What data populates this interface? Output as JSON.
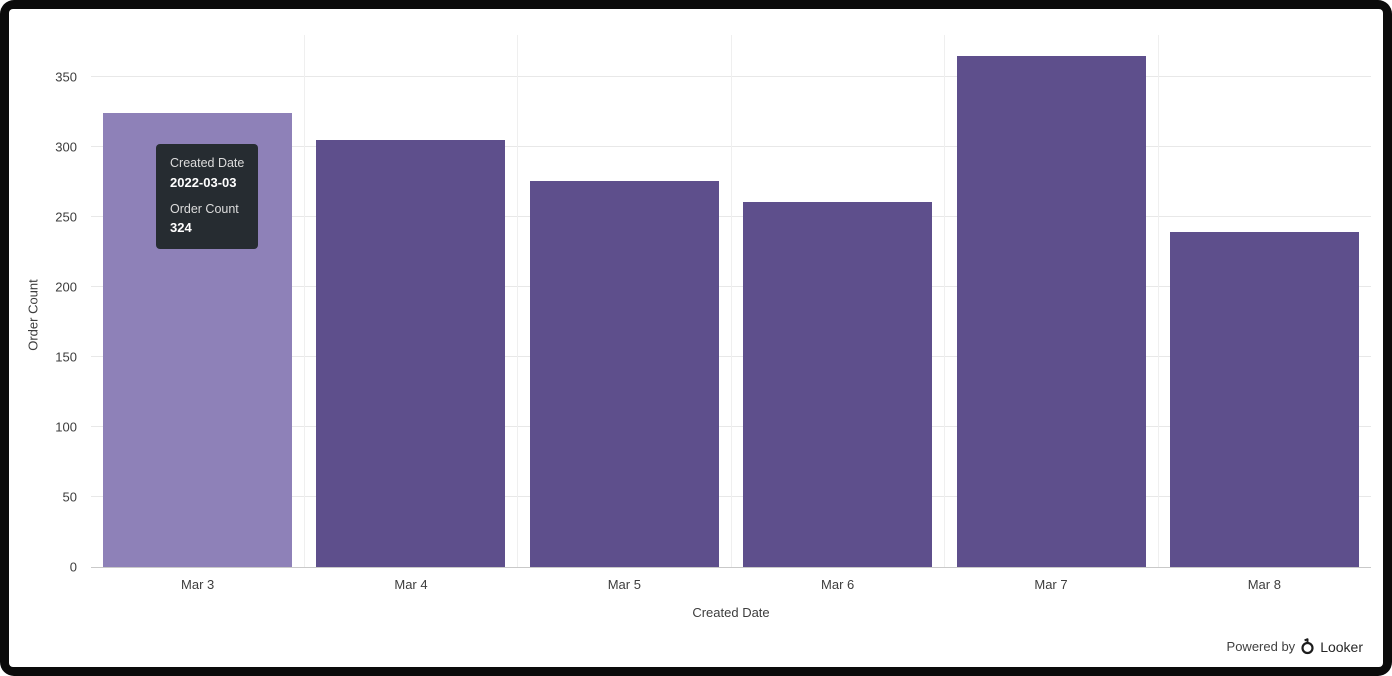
{
  "chart_data": {
    "type": "bar",
    "categories": [
      "Mar 3",
      "Mar 4",
      "Mar 5",
      "Mar 6",
      "Mar 7",
      "Mar 8"
    ],
    "values": [
      324,
      305,
      276,
      261,
      365,
      239
    ],
    "series_name": "Order Count",
    "title": "",
    "xlabel": "Created Date",
    "ylabel": "Order Count",
    "ylim": [
      0,
      380
    ],
    "yticks": [
      0,
      50,
      100,
      150,
      200,
      250,
      300,
      350
    ],
    "grid": "horizontal",
    "legend": "none",
    "bar_color": "#5E4F8C",
    "bar_hover_color": "#8E81B8",
    "hover_index": 0
  },
  "tooltip": {
    "date_label": "Created Date",
    "date_value": "2022-03-03",
    "count_label": "Order Count",
    "count_value": "324"
  },
  "footer": {
    "powered_by": "Powered by",
    "brand": "Looker"
  }
}
